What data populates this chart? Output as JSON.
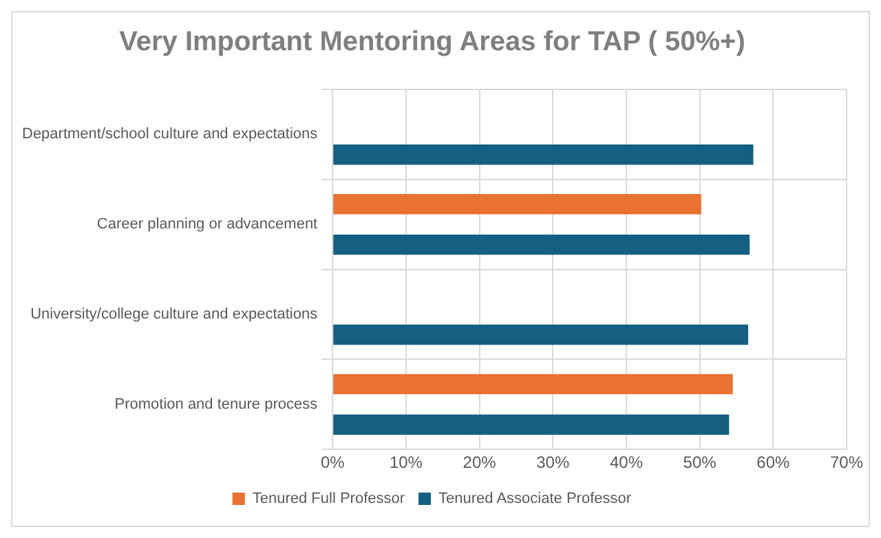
{
  "chart_data": {
    "type": "bar",
    "orientation": "horizontal",
    "title": "Very Important Mentoring Areas for TAP ( 50%+)",
    "categories": [
      "Department/school culture and expectations",
      "Career planning or advancement",
      "University/college culture and expectations",
      "Promotion and tenure process"
    ],
    "series": [
      {
        "name": "Tenured Full Professor",
        "color": "#e97132",
        "values": [
          null,
          50.2,
          null,
          54.5
        ]
      },
      {
        "name": "Tenured Associate Professor",
        "color": "#156082",
        "values": [
          57.3,
          56.8,
          56.6,
          54.0
        ]
      }
    ],
    "xlim": [
      0,
      70
    ],
    "xticks": [
      {
        "value": 0,
        "label": "0%"
      },
      {
        "value": 10,
        "label": "10%"
      },
      {
        "value": 20,
        "label": "20%"
      },
      {
        "value": 30,
        "label": "30%"
      },
      {
        "value": 40,
        "label": "40%"
      },
      {
        "value": 50,
        "label": "50%"
      },
      {
        "value": 60,
        "label": "60%"
      },
      {
        "value": 70,
        "label": "70%"
      }
    ],
    "grid": true,
    "legend": "bottom"
  }
}
